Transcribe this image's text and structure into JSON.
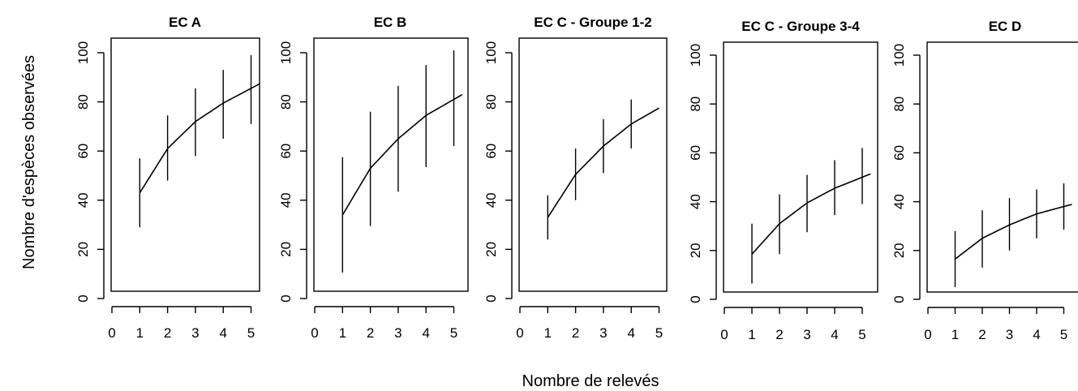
{
  "figure": {
    "ylabel": "Nombre d'espèces observées",
    "xlabel": "Nombre de relevés"
  },
  "chart_data": [
    {
      "type": "line",
      "title": "EC A",
      "xlabel": "",
      "ylabel": "",
      "x_ticks": [
        "0",
        "1",
        "2",
        "3",
        "4",
        "5"
      ],
      "y_ticks": [
        "0",
        "20",
        "40",
        "60",
        "80",
        "100"
      ],
      "ylim": [
        0,
        100
      ],
      "xlim": [
        0,
        5
      ],
      "x": [
        1,
        2,
        3,
        4,
        5
      ],
      "mean": [
        43,
        61,
        72,
        79.5,
        85.5
      ],
      "lower": [
        29,
        48,
        58,
        65,
        71
      ],
      "upper": [
        57,
        74.5,
        85.5,
        93,
        99
      ],
      "curve_end": 5.3
    },
    {
      "type": "line",
      "title": "EC B",
      "xlabel": "",
      "ylabel": "",
      "x_ticks": [
        "0",
        "1",
        "2",
        "3",
        "4",
        "5"
      ],
      "y_ticks": [
        "0",
        "20",
        "40",
        "60",
        "80",
        "100"
      ],
      "ylim": [
        0,
        100
      ],
      "xlim": [
        0,
        5
      ],
      "x": [
        1,
        2,
        3,
        4,
        5
      ],
      "mean": [
        34,
        53,
        65,
        74.5,
        81
      ],
      "lower": [
        10.5,
        29.5,
        43.5,
        53.5,
        62
      ],
      "upper": [
        57.5,
        76,
        86.5,
        95,
        101
      ],
      "curve_end": 5.3
    },
    {
      "type": "line",
      "title": "EC C - Groupe 1-2",
      "xlabel": "",
      "ylabel": "",
      "x_ticks": [
        "0",
        "1",
        "2",
        "3",
        "4",
        "5"
      ],
      "y_ticks": [
        "0",
        "20",
        "40",
        "60",
        "80",
        "100"
      ],
      "ylim": [
        0,
        100
      ],
      "xlim": [
        0,
        5
      ],
      "x": [
        1,
        2,
        3,
        4
      ],
      "mean": [
        33,
        50.5,
        62,
        71
      ],
      "lower": [
        24,
        40,
        51,
        61
      ],
      "upper": [
        42,
        61,
        73,
        81
      ],
      "curve_end": 5.0,
      "curve_end_value": 77.5
    },
    {
      "type": "line",
      "title": "EC C - Groupe 3-4",
      "xlabel": "",
      "ylabel": "",
      "x_ticks": [
        "0",
        "1",
        "2",
        "3",
        "4",
        "5"
      ],
      "y_ticks": [
        "0",
        "20",
        "40",
        "60",
        "80",
        "100"
      ],
      "ylim": [
        0,
        100
      ],
      "xlim": [
        0,
        5
      ],
      "x": [
        1,
        2,
        3,
        4,
        5
      ],
      "mean": [
        18.5,
        31,
        39.5,
        45.5,
        50
      ],
      "lower": [
        6.5,
        18.5,
        27.5,
        34.5,
        39
      ],
      "upper": [
        31,
        43,
        51,
        57,
        62
      ],
      "curve_end": 5.3
    },
    {
      "type": "line",
      "title": "EC D",
      "xlabel": "",
      "ylabel": "",
      "x_ticks": [
        "0",
        "1",
        "2",
        "3",
        "4",
        "5"
      ],
      "y_ticks": [
        "0",
        "20",
        "40",
        "60",
        "80",
        "100"
      ],
      "ylim": [
        0,
        100
      ],
      "xlim": [
        0,
        5
      ],
      "x": [
        1,
        2,
        3,
        4,
        5
      ],
      "mean": [
        16.5,
        25,
        30.5,
        35,
        38
      ],
      "lower": [
        5,
        13,
        20,
        25,
        28.5
      ],
      "upper": [
        28,
        36.5,
        41.5,
        45,
        47.5
      ],
      "curve_end": 5.3
    }
  ]
}
